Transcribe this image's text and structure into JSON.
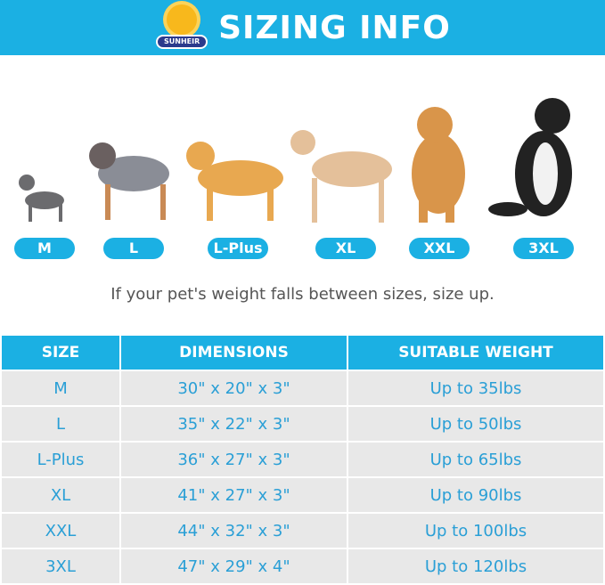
{
  "header": {
    "brand": "SUNHEIR",
    "title": "SIZING INFO",
    "color": "#1bb0e3"
  },
  "sizes": [
    "M",
    "L",
    "L-Plus",
    "XL",
    "XXL",
    "3XL"
  ],
  "note": "If your pet's weight falls between sizes, size up.",
  "table": {
    "columns": [
      "SIZE",
      "DIMENSIONS",
      "SUITABLE WEIGHT"
    ],
    "rows": [
      [
        "M",
        "30\" x 20\" x 3\"",
        "Up to 35lbs"
      ],
      [
        "L",
        "35\" x 22\" x 3\"",
        "Up to 50lbs"
      ],
      [
        "L-Plus",
        "36\" x 27\" x 3\"",
        "Up to 65lbs"
      ],
      [
        "XL",
        "41\" x 27\" x 3\"",
        "Up to 90lbs"
      ],
      [
        "XXL",
        "44\" x 32\" x 3\"",
        "Up to 100lbs"
      ],
      [
        "3XL",
        "47\" x 29\" x 4\"",
        "Up to 120lbs"
      ]
    ]
  }
}
